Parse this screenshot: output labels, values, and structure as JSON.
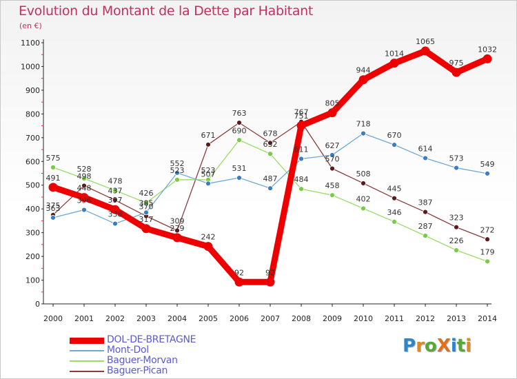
{
  "title": "Evolution du Montant de la Dette par Habitant",
  "unit": "(en €)",
  "logo": {
    "text": "ProXiti",
    "letters": [
      {
        "ch": "P",
        "color": "#2e86c8"
      },
      {
        "ch": "r",
        "color": "#e08a1e"
      },
      {
        "ch": "o",
        "color": "#55aa33"
      },
      {
        "ch": "X",
        "color": "#e07020"
      },
      {
        "ch": "i",
        "color": "#2e86c8"
      },
      {
        "ch": "t",
        "color": "#55aa33"
      },
      {
        "ch": "i",
        "color": "#e08a1e"
      }
    ]
  },
  "chart_data": {
    "type": "line",
    "title": "Evolution du Montant de la Dette par Habitant",
    "ylabel": "(en €)",
    "xlabel": "",
    "x": [
      2000,
      2001,
      2002,
      2003,
      2004,
      2005,
      2006,
      2007,
      2008,
      2009,
      2010,
      2011,
      2012,
      2013,
      2014
    ],
    "ylim": [
      0,
      1100
    ],
    "yticks": [
      0,
      100,
      200,
      300,
      400,
      500,
      600,
      700,
      800,
      900,
      1000,
      1100
    ],
    "grid": false,
    "legend_position": "bottom-left",
    "series": [
      {
        "name": "DOL-DE-BRETAGNE",
        "color": "#ee0000",
        "marker": "#ee0000",
        "values": [
          491,
          448,
          397,
          317,
          279,
          242,
          92,
          92,
          751,
          805,
          944,
          1014,
          1065,
          975,
          1032
        ]
      },
      {
        "name": "Mont-Dol",
        "color": "#6fa8d8",
        "marker": "#3a7dc0",
        "values": [
          363,
          396,
          338,
          385,
          552,
          507,
          531,
          487,
          611,
          627,
          718,
          670,
          614,
          573,
          549
        ]
      },
      {
        "name": "Baguer-Morvan",
        "color": "#99dd66",
        "marker": "#77cc44",
        "values": [
          575,
          528,
          478,
          426,
          523,
          523,
          690,
          632,
          484,
          458,
          402,
          346,
          287,
          226,
          179
        ]
      },
      {
        "name": "Baguer-Pican",
        "color": "#8b3a3a",
        "marker": "#5c1a1a",
        "values": [
          375,
          498,
          437,
          370,
          309,
          671,
          763,
          678,
          767,
          570,
          508,
          445,
          387,
          323,
          272
        ]
      }
    ]
  }
}
